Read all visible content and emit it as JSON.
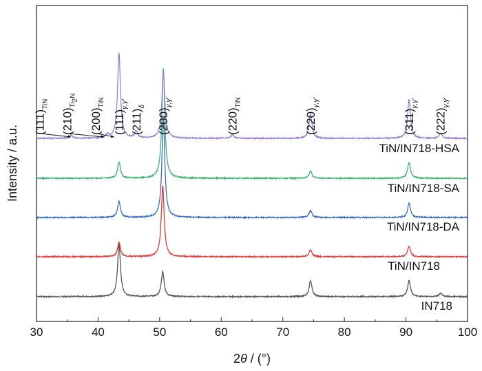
{
  "chart_data": {
    "type": "line",
    "xlabel_italic": "θ",
    "xlabel_prefix": "2",
    "xlabel_suffix": " / (°)",
    "ylabel": "Intensity / a.u.",
    "xlim": [
      30,
      100
    ],
    "x_ticks": [
      "30",
      "40",
      "50",
      "60",
      "70",
      "80",
      "90",
      "100"
    ],
    "series": [
      {
        "name": "IN718",
        "color": "#555555",
        "baseline": 0.0,
        "peaks": [
          [
            43.4,
            0.3
          ],
          [
            50.5,
            0.14
          ],
          [
            74.5,
            0.09
          ],
          [
            90.5,
            0.09
          ],
          [
            95.6,
            0.02
          ]
        ]
      },
      {
        "name": "TiN/IN718",
        "color": "#e03a3a",
        "baseline": 1.0,
        "peaks": [
          [
            43.4,
            0.08
          ],
          [
            50.5,
            0.4
          ],
          [
            74.5,
            0.04
          ],
          [
            90.5,
            0.06
          ]
        ]
      },
      {
        "name": "TiN/IN718-DA",
        "color": "#3a6fc0",
        "baseline": 2.0,
        "peaks": [
          [
            43.4,
            0.09
          ],
          [
            50.6,
            0.56
          ],
          [
            74.5,
            0.04
          ],
          [
            90.5,
            0.08
          ]
        ]
      },
      {
        "name": "TiN/IN718-SA",
        "color": "#3cb371",
        "baseline": 3.0,
        "peaks": [
          [
            43.4,
            0.09
          ],
          [
            50.6,
            0.62
          ],
          [
            74.5,
            0.04
          ],
          [
            90.5,
            0.09
          ]
        ]
      },
      {
        "name": "TiN/IN718-HSA",
        "color": "#9b7fcf",
        "baseline": 4.0,
        "peaks": [
          [
            35.6,
            0.02
          ],
          [
            41.5,
            0.02
          ],
          [
            43.4,
            0.48
          ],
          [
            46.2,
            0.04
          ],
          [
            50.6,
            0.38
          ],
          [
            61.8,
            0.02
          ],
          [
            74.5,
            0.14
          ],
          [
            90.5,
            0.22
          ],
          [
            95.6,
            0.03
          ]
        ]
      }
    ],
    "peak_labels": [
      {
        "hkl": "(111)",
        "sub": "TiN",
        "x": 30.5,
        "arrow_to": 35.6
      },
      {
        "hkl": "(210)",
        "sub": "Ti",
        "sub2": "2",
        "sub3": "N",
        "x": 35.0,
        "arrow_to": 41.0
      },
      {
        "hkl": "(200)",
        "sub": "TiN",
        "x": 39.6,
        "arrow_to": 42.6
      },
      {
        "hkl": "(111)",
        "sub": "γ,γ′",
        "x": 43.4
      },
      {
        "hkl": "(211)",
        "sub": "δ",
        "x": 46.2
      },
      {
        "hkl": "(200)",
        "sub": "γ,γ′",
        "x": 50.6
      },
      {
        "hkl": "(220)",
        "sub": "TiN",
        "x": 61.8
      },
      {
        "hkl": "(220)",
        "sub": "γ,γ′",
        "x": 74.5
      },
      {
        "hkl": "(311)",
        "sub": "γ,γ′",
        "x": 90.5
      },
      {
        "hkl": "(222)",
        "sub": "γ,γ′",
        "x": 95.6
      }
    ]
  }
}
